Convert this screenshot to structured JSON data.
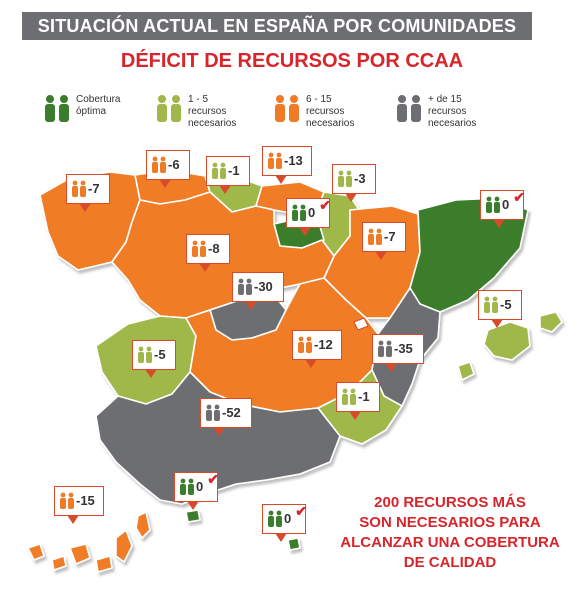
{
  "title": "SITUACIÓN ACTUAL EN ESPAÑA POR COMUNIDADES",
  "subtitle": "DÉFICIT DE RECURSOS POR CCAA",
  "legend": [
    {
      "label": "Cobertura\nóptima",
      "color": "#3a7d2c"
    },
    {
      "label": "1 - 5 recursos\nnecesarios",
      "color": "#a0b74a"
    },
    {
      "label": "6 - 15 recursos\nnecesarios",
      "color": "#f07b27"
    },
    {
      "label": "+ de 15 recursos\nnecesarios",
      "color": "#6d6e71"
    }
  ],
  "colors": {
    "optima": "#3a7d2c",
    "low": "#a0b74a",
    "mid": "#f07b27",
    "high": "#6d6e71",
    "accent": "#d7262b"
  },
  "regions": [
    {
      "name": "galicia",
      "value": "-7",
      "level": "mid"
    },
    {
      "name": "asturias",
      "value": "-6",
      "level": "mid"
    },
    {
      "name": "cantabria",
      "value": "-1",
      "level": "low"
    },
    {
      "name": "pais-vasco",
      "value": "-13",
      "level": "mid"
    },
    {
      "name": "navarra",
      "value": "-3",
      "level": "low"
    },
    {
      "name": "la-rioja",
      "value": "0",
      "level": "optima",
      "check": true
    },
    {
      "name": "aragon",
      "value": "-7",
      "level": "mid"
    },
    {
      "name": "cataluna",
      "value": "0",
      "level": "optima",
      "check": true
    },
    {
      "name": "castilla-leon",
      "value": "-8",
      "level": "mid"
    },
    {
      "name": "madrid",
      "value": "-30",
      "level": "high"
    },
    {
      "name": "baleares",
      "value": "-5",
      "level": "low"
    },
    {
      "name": "extremadura",
      "value": "-5",
      "level": "low"
    },
    {
      "name": "castilla-la-mancha",
      "value": "-12",
      "level": "mid"
    },
    {
      "name": "valencia",
      "value": "-35",
      "level": "high"
    },
    {
      "name": "murcia",
      "value": "-1",
      "level": "low"
    },
    {
      "name": "andalucia",
      "value": "-52",
      "level": "high"
    },
    {
      "name": "ceuta",
      "value": "0",
      "level": "optima",
      "check": true
    },
    {
      "name": "melilla",
      "value": "0",
      "level": "optima",
      "check": true
    },
    {
      "name": "canarias",
      "value": "-15",
      "level": "mid"
    }
  ],
  "note": "200 RECURSOS MÁS\nSON NECESARIOS PARA\nALCANZAR UNA COBERTURA\nDE CALIDAD"
}
